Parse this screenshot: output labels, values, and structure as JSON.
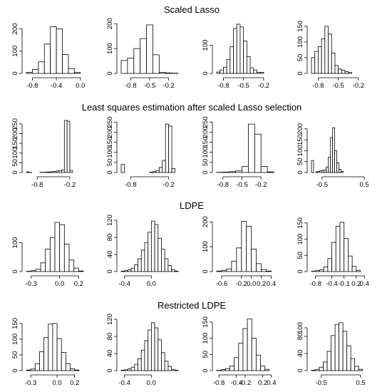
{
  "rows": [
    {
      "title": "Scaled Lasso"
    },
    {
      "title": "Least squares estimation after scaled Lasso selection"
    },
    {
      "title": "LDPE"
    },
    {
      "title": "Restricted LDPE"
    }
  ],
  "chart_data": [
    {
      "type": "bar",
      "row": 0,
      "col": 0,
      "bin_start": -0.9,
      "bin_width": 0.1,
      "values": [
        5,
        18,
        52,
        132,
        210,
        200,
        85,
        22,
        4
      ],
      "xlim": [
        -0.9,
        0.05
      ],
      "ylim": [
        0,
        240
      ],
      "xticks": [
        {
          "v": -0.8,
          "t": "-0.8"
        },
        {
          "v": -0.4,
          "t": "-0.4"
        },
        {
          "v": 0.0,
          "t": "0.0"
        }
      ],
      "yticks": [
        {
          "v": 0,
          "t": "0"
        },
        {
          "v": 100,
          "t": "100"
        },
        {
          "v": 200,
          "t": "200"
        }
      ]
    },
    {
      "type": "bar",
      "row": 0,
      "col": 1,
      "bin_start": -0.95,
      "bin_width": 0.1,
      "values": [
        52,
        62,
        100,
        140,
        195,
        75,
        4,
        2,
        1
      ],
      "xlim": [
        -0.95,
        -0.05
      ],
      "ylim": [
        0,
        215
      ],
      "xticks": [
        {
          "v": -0.8,
          "t": "-0.8"
        },
        {
          "v": -0.5,
          "t": "-0.5"
        },
        {
          "v": -0.2,
          "t": "-0.2"
        }
      ],
      "yticks": [
        {
          "v": 0,
          "t": "0"
        },
        {
          "v": 100,
          "t": "100"
        },
        {
          "v": 200,
          "t": "200"
        }
      ]
    },
    {
      "type": "bar",
      "row": 1,
      "col": 2,
      "bin_start": -0.9,
      "bin_width": 0.1,
      "values": [
        1,
        2,
        4,
        8,
        30,
        240,
        190,
        30,
        3
      ],
      "xlim": [
        -0.9,
        0.0
      ],
      "ylim": [
        0,
        265
      ],
      "xticks": [
        {
          "v": -0.8,
          "t": "-0.8"
        },
        {
          "v": -0.5,
          "t": "-0.5"
        },
        {
          "v": -0.2,
          "t": "-0.2"
        }
      ],
      "yticks": [
        {
          "v": 0,
          "t": "0"
        },
        {
          "v": 50,
          "t": "50"
        },
        {
          "v": 100,
          "t": "100"
        },
        {
          "v": 150,
          "t": "150"
        },
        {
          "v": 200,
          "t": "200"
        },
        {
          "v": 250,
          "t": "250"
        }
      ]
    },
    {
      "type": "bar",
      "row": 0,
      "col": 2,
      "bin_start": -0.9,
      "bin_width": 0.05,
      "values": [
        5,
        12,
        22,
        50,
        95,
        160,
        175,
        165,
        115,
        60,
        20,
        12,
        4,
        4
      ],
      "xlim": [
        -0.9,
        -0.05
      ],
      "ylim": [
        0,
        190
      ],
      "xticks": [
        {
          "v": -0.8,
          "t": "-0.8"
        },
        {
          "v": -0.5,
          "t": "-0.5"
        },
        {
          "v": -0.2,
          "t": "-0.2"
        }
      ],
      "yticks": [
        {
          "v": 0,
          "t": "0"
        },
        {
          "v": 100,
          "t": "100"
        }
      ]
    },
    {
      "type": "bar",
      "row": 0,
      "col": 3,
      "bin_start": -0.9,
      "bin_width": 0.05,
      "values": [
        50,
        70,
        85,
        110,
        150,
        125,
        65,
        25,
        14,
        10,
        6,
        3
      ],
      "xlim": [
        -0.9,
        -0.05
      ],
      "ylim": [
        0,
        170
      ],
      "xticks": [
        {
          "v": -0.8,
          "t": "-0.8"
        },
        {
          "v": -0.5,
          "t": "-0.5"
        },
        {
          "v": -0.2,
          "t": "-0.2"
        }
      ],
      "yticks": [
        {
          "v": 0,
          "t": "0"
        },
        {
          "v": 50,
          "t": "50"
        },
        {
          "v": 100,
          "t": "100"
        },
        {
          "v": 150,
          "t": "150"
        }
      ]
    },
    {
      "type": "bar",
      "row": 1,
      "col": 0,
      "bin_start": -1.0,
      "bin_width": 0.05,
      "values": [
        3,
        1,
        0,
        0,
        0,
        1,
        1,
        2,
        3,
        4,
        6,
        8,
        10,
        12,
        268,
        264,
        10
      ],
      "xlim": [
        -1.0,
        0.05
      ],
      "ylim": [
        0,
        275
      ],
      "xticks": [
        {
          "v": -0.8,
          "t": "-0.8"
        },
        {
          "v": -0.2,
          "t": "-0.2"
        }
      ],
      "yticks": [
        {
          "v": 0,
          "t": "0"
        },
        {
          "v": 50,
          "t": "50"
        },
        {
          "v": 100,
          "t": "100"
        },
        {
          "v": 150,
          "t": "150"
        },
        {
          "v": 200,
          "t": "200"
        },
        {
          "v": 250,
          "t": "250"
        }
      ]
    },
    {
      "type": "bar",
      "row": 1,
      "col": 1,
      "bin_start": -0.95,
      "bin_width": 0.05,
      "values": [
        40,
        0,
        0,
        0,
        0,
        0,
        0,
        0,
        0,
        2,
        4,
        10,
        25,
        60,
        240,
        230,
        20
      ],
      "xlim": [
        -0.95,
        -0.05
      ],
      "ylim": [
        0,
        265
      ],
      "xticks": [
        {
          "v": -0.8,
          "t": "-0.8"
        },
        {
          "v": -0.2,
          "t": "-0.2"
        }
      ],
      "yticks": [
        {
          "v": 0,
          "t": "0"
        },
        {
          "v": 50,
          "t": "50"
        },
        {
          "v": 100,
          "t": "100"
        },
        {
          "v": 150,
          "t": "150"
        },
        {
          "v": 200,
          "t": "200"
        },
        {
          "v": 250,
          "t": "250"
        }
      ]
    },
    {
      "type": "bar",
      "row": 1,
      "col": 3,
      "bin_start": -0.75,
      "bin_width": 0.05,
      "values": [
        55,
        0,
        3,
        5,
        8,
        10,
        12,
        25,
        70,
        160,
        205,
        100,
        45,
        15,
        5
      ],
      "xlim": [
        -0.75,
        0.6
      ],
      "ylim": [
        0,
        245
      ],
      "xticks": [
        {
          "v": -0.5,
          "t": "-0.5"
        },
        {
          "v": 0.5,
          "t": "0.5"
        }
      ],
      "yticks": [
        {
          "v": 0,
          "t": "0"
        },
        {
          "v": 50,
          "t": "50"
        },
        {
          "v": 100,
          "t": "100"
        },
        {
          "v": 150,
          "t": "150"
        },
        {
          "v": 200,
          "t": "200"
        }
      ]
    },
    {
      "type": "bar",
      "row": 2,
      "col": 0,
      "bin_start": -0.35,
      "bin_width": 0.05,
      "values": [
        1,
        3,
        8,
        30,
        78,
        118,
        170,
        162,
        95,
        40,
        12,
        2
      ],
      "xlim": [
        -0.35,
        0.25
      ],
      "ylim": [
        0,
        185
      ],
      "xticks": [
        {
          "v": -0.3,
          "t": "-0.3"
        },
        {
          "v": 0.0,
          "t": "0.0"
        },
        {
          "v": 0.2,
          "t": "0.2"
        }
      ],
      "yticks": [
        {
          "v": 0,
          "t": "0"
        },
        {
          "v": 100,
          "t": "100"
        }
      ]
    },
    {
      "type": "bar",
      "row": 2,
      "col": 1,
      "bin_start": -0.45,
      "bin_width": 0.05,
      "values": [
        1,
        2,
        4,
        8,
        16,
        30,
        50,
        68,
        92,
        118,
        110,
        78,
        52,
        30,
        14,
        4,
        1
      ],
      "xlim": [
        -0.45,
        0.4
      ],
      "ylim": [
        0,
        125
      ],
      "xticks": [
        {
          "v": -0.4,
          "t": "-0.4"
        },
        {
          "v": 0.0,
          "t": "0.0"
        }
      ],
      "yticks": [
        {
          "v": 0,
          "t": "0"
        },
        {
          "v": 40,
          "t": "40"
        },
        {
          "v": 80,
          "t": "80"
        },
        {
          "v": 120,
          "t": "120"
        }
      ]
    },
    {
      "type": "bar",
      "row": 2,
      "col": 2,
      "bin_start": -0.7,
      "bin_width": 0.1,
      "values": [
        2,
        5,
        10,
        42,
        95,
        202,
        182,
        90,
        32,
        8,
        2
      ],
      "xlim": [
        -0.7,
        0.45
      ],
      "ylim": [
        0,
        215
      ],
      "xticks": [
        {
          "v": -0.6,
          "t": "-0.6"
        },
        {
          "v": -0.2,
          "t": "-0.2"
        },
        {
          "v": 0.0,
          "t": "0.0"
        },
        {
          "v": 0.2,
          "t": "0.2"
        },
        {
          "v": 0.4,
          "t": "0.4"
        }
      ],
      "yticks": [
        {
          "v": 0,
          "t": "0"
        },
        {
          "v": 100,
          "t": "100"
        },
        {
          "v": 200,
          "t": "200"
        }
      ]
    },
    {
      "type": "bar",
      "row": 2,
      "col": 3,
      "bin_start": -0.9,
      "bin_width": 0.1,
      "values": [
        1,
        3,
        5,
        14,
        40,
        90,
        140,
        152,
        102,
        48,
        16,
        4
      ],
      "xlim": [
        -0.9,
        0.5
      ],
      "ylim": [
        0,
        165
      ],
      "xticks": [
        {
          "v": -0.8,
          "t": "-0.8"
        },
        {
          "v": -0.4,
          "t": "-0.4"
        },
        {
          "v": -0.1,
          "t": "-0.1"
        },
        {
          "v": 0.2,
          "t": "0.2"
        },
        {
          "v": 0.4,
          "t": "0.4"
        }
      ],
      "yticks": [
        {
          "v": 0,
          "t": "0"
        },
        {
          "v": 50,
          "t": "50"
        },
        {
          "v": 100,
          "t": "100"
        },
        {
          "v": 150,
          "t": "150"
        }
      ]
    },
    {
      "type": "bar",
      "row": 3,
      "col": 0,
      "bin_start": -0.35,
      "bin_width": 0.05,
      "values": [
        2,
        5,
        22,
        60,
        105,
        148,
        150,
        102,
        58,
        22,
        6,
        2
      ],
      "xlim": [
        -0.35,
        0.3
      ],
      "ylim": [
        0,
        170
      ],
      "xticks": [
        {
          "v": -0.3,
          "t": "-0.3"
        },
        {
          "v": 0.0,
          "t": "0.0"
        },
        {
          "v": 0.2,
          "t": "0.2"
        }
      ],
      "yticks": [
        {
          "v": 0,
          "t": "0"
        },
        {
          "v": 50,
          "t": "50"
        },
        {
          "v": 100,
          "t": "100"
        },
        {
          "v": 150,
          "t": "150"
        }
      ]
    },
    {
      "type": "bar",
      "row": 3,
      "col": 1,
      "bin_start": -0.45,
      "bin_width": 0.05,
      "values": [
        1,
        2,
        4,
        8,
        15,
        28,
        48,
        70,
        95,
        112,
        100,
        72,
        42,
        22,
        10,
        3,
        1
      ],
      "xlim": [
        -0.45,
        0.4
      ],
      "ylim": [
        0,
        125
      ],
      "xticks": [
        {
          "v": -0.4,
          "t": "-0.4"
        },
        {
          "v": 0.0,
          "t": "0.0"
        }
      ],
      "yticks": [
        {
          "v": 0,
          "t": "0"
        },
        {
          "v": 40,
          "t": "40"
        },
        {
          "v": 80,
          "t": "80"
        },
        {
          "v": 120,
          "t": "120"
        }
      ]
    },
    {
      "type": "bar",
      "row": 3,
      "col": 2,
      "bin_start": -0.85,
      "bin_width": 0.1,
      "values": [
        1,
        3,
        6,
        14,
        40,
        85,
        130,
        160,
        100,
        48,
        14,
        4
      ],
      "xlim": [
        -0.85,
        0.45
      ],
      "ylim": [
        0,
        165
      ],
      "xticks": [
        {
          "v": -0.8,
          "t": "-0.8"
        },
        {
          "v": -0.4,
          "t": "-0.4"
        },
        {
          "v": -0.2,
          "t": "-0.2"
        },
        {
          "v": 0.2,
          "t": "0.2"
        },
        {
          "v": 0.4,
          "t": "0.4"
        }
      ],
      "yticks": [
        {
          "v": 0,
          "t": "0"
        },
        {
          "v": 50,
          "t": "50"
        },
        {
          "v": 100,
          "t": "100"
        },
        {
          "v": 150,
          "t": "150"
        }
      ]
    },
    {
      "type": "bar",
      "row": 3,
      "col": 3,
      "bin_start": -0.75,
      "bin_width": 0.1,
      "values": [
        1,
        3,
        8,
        20,
        45,
        82,
        108,
        112,
        92,
        58,
        28,
        10,
        3
      ],
      "xlim": [
        -0.75,
        0.7
      ],
      "ylim": [
        0,
        125
      ],
      "xticks": [
        {
          "v": -0.5,
          "t": "-0.5"
        },
        {
          "v": 0.5,
          "t": "0.5"
        }
      ],
      "yticks": [
        {
          "v": 0,
          "t": "0"
        },
        {
          "v": 40,
          "t": "40"
        },
        {
          "v": 80,
          "t": "80"
        },
        {
          "v": 100,
          "t": "100"
        }
      ]
    }
  ]
}
